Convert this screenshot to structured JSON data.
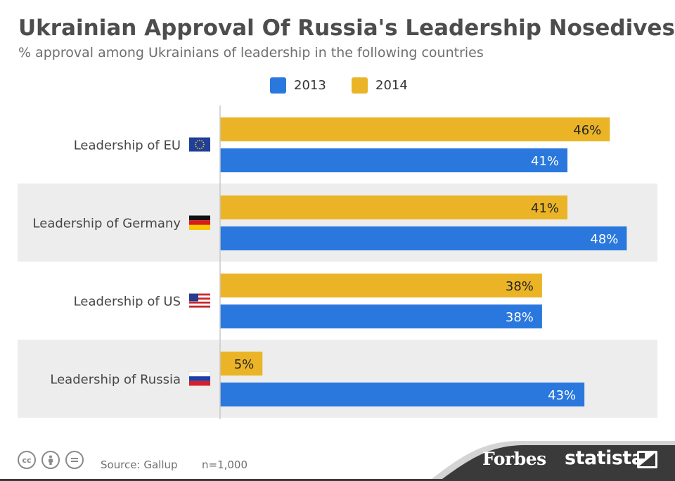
{
  "header": {
    "title": "Ukrainian Approval Of Russia's Leadership Nosedives",
    "subtitle": "% approval among Ukrainians of leadership in the following countries"
  },
  "colors": {
    "series_2013": "#2a78de",
    "series_2014": "#ebb426",
    "band": "#ededed",
    "axis": "#c8c8c8"
  },
  "chart_data": {
    "type": "bar",
    "orientation": "horizontal",
    "categories": [
      "Leadership of EU",
      "Leadership of Germany",
      "Leadership of US",
      "Leadership of Russia"
    ],
    "category_flags": [
      "eu-flag-icon",
      "germany-flag-icon",
      "us-flag-icon",
      "russia-flag-icon"
    ],
    "series": [
      {
        "name": "2014",
        "values": [
          46,
          41,
          38,
          5
        ]
      },
      {
        "name": "2013",
        "values": [
          41,
          48,
          38,
          43
        ]
      }
    ],
    "value_suffix": "%",
    "xlim": [
      0,
      50
    ],
    "legend_position": "top-center",
    "grid": false
  },
  "footer": {
    "source": "Source: Gallup",
    "sample": "n=1,000",
    "license_icons": [
      "cc-icon",
      "by-icon",
      "nd-icon"
    ],
    "forbes": "Forbes",
    "statista": "statista"
  }
}
